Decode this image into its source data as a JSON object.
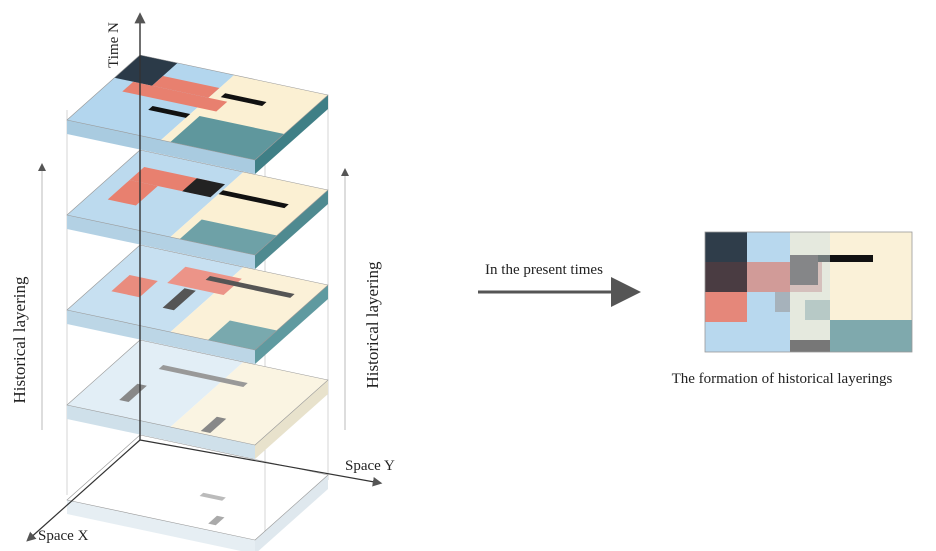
{
  "axes": {
    "time": "Time N",
    "space_y": "Space Y",
    "space_x": "Space X"
  },
  "side_labels": [
    "Historical layering",
    "Historical layering"
  ],
  "arrow_label": "In the present times",
  "caption": "The formation of historical layerings"
}
